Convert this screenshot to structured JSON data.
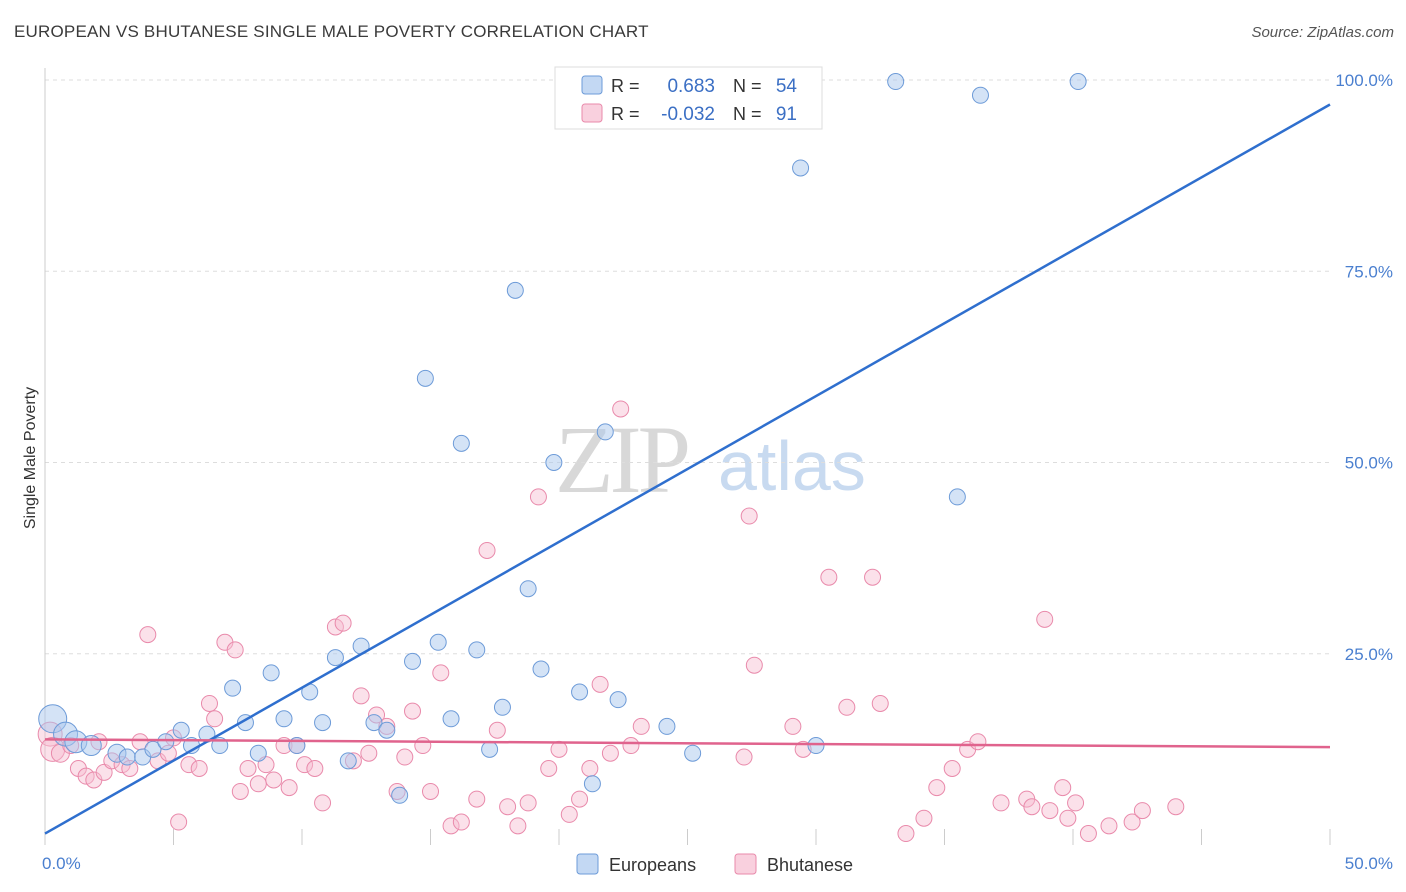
{
  "title": "EUROPEAN VS BHUTANESE SINGLE MALE POVERTY CORRELATION CHART",
  "source": "Source: ZipAtlas.com",
  "watermark": {
    "zip": "ZIP",
    "atlas": "atlas"
  },
  "colors": {
    "europeans_fill": "#a9c8ee",
    "europeans_stroke": "#6d9bd8",
    "europeans_line": "#2f6fce",
    "bhutanese_fill": "#f7bcd0",
    "bhutanese_stroke": "#e98aab",
    "bhutanese_line": "#e0638d",
    "tick_label": "#4a7fcf",
    "grid": "#dddddd"
  },
  "legend": {
    "rows": [
      {
        "r_label": "R =",
        "r_value": "0.683",
        "n_label": "N =",
        "n_value": "54"
      },
      {
        "r_label": "R =",
        "r_value": "-0.032",
        "n_label": "N =",
        "n_value": "91"
      }
    ]
  },
  "bottom_legend": [
    "Europeans",
    "Bhutanese"
  ],
  "chart_data": {
    "type": "scatter",
    "title": "EUROPEAN VS BHUTANESE SINGLE MALE POVERTY CORRELATION CHART",
    "xlabel": "",
    "ylabel": "Single Male Poverty",
    "xlim": [
      0,
      50
    ],
    "ylim": [
      0,
      100
    ],
    "x_tick_labels": [
      "0.0%",
      "50.0%"
    ],
    "y_tick_values": [
      25,
      50,
      75,
      100
    ],
    "y_tick_labels": [
      "25.0%",
      "50.0%",
      "75.0%",
      "100.0%"
    ],
    "grid": true,
    "legend_position": "top-center",
    "series": [
      {
        "name": "Europeans",
        "r": 0.683,
        "n": 54,
        "trend": {
          "x": [
            0,
            50
          ],
          "y": [
            1.5,
            96.8
          ]
        },
        "points": [
          [
            0.3,
            16.5,
            14
          ],
          [
            0.8,
            14.5,
            12
          ],
          [
            1.2,
            13.5,
            11
          ],
          [
            1.8,
            13.0,
            10
          ],
          [
            2.8,
            12.0,
            9
          ],
          [
            3.2,
            11.5,
            8
          ],
          [
            3.8,
            11.5,
            8
          ],
          [
            4.2,
            12.5,
            8
          ],
          [
            4.7,
            13.5,
            8
          ],
          [
            5.3,
            15.0,
            8
          ],
          [
            5.7,
            13.0,
            8
          ],
          [
            6.3,
            14.5,
            8
          ],
          [
            6.8,
            13.0,
            8
          ],
          [
            7.3,
            20.5,
            8
          ],
          [
            7.8,
            16.0,
            8
          ],
          [
            8.3,
            12.0,
            8
          ],
          [
            8.8,
            22.5,
            8
          ],
          [
            9.3,
            16.5,
            8
          ],
          [
            9.8,
            13.0,
            8
          ],
          [
            10.3,
            20.0,
            8
          ],
          [
            10.8,
            16.0,
            8
          ],
          [
            11.3,
            24.5,
            8
          ],
          [
            11.8,
            11.0,
            8
          ],
          [
            12.3,
            26.0,
            8
          ],
          [
            12.8,
            16.0,
            8
          ],
          [
            13.3,
            15.0,
            8
          ],
          [
            13.8,
            6.5,
            8
          ],
          [
            14.3,
            24.0,
            8
          ],
          [
            14.8,
            61.0,
            8
          ],
          [
            15.3,
            26.5,
            8
          ],
          [
            15.8,
            16.5,
            8
          ],
          [
            16.2,
            52.5,
            8
          ],
          [
            16.8,
            25.5,
            8
          ],
          [
            17.3,
            12.5,
            8
          ],
          [
            17.8,
            18.0,
            8
          ],
          [
            18.3,
            72.5,
            8
          ],
          [
            18.8,
            33.5,
            8
          ],
          [
            19.3,
            23.0,
            8
          ],
          [
            19.8,
            50.0,
            8
          ],
          [
            20.8,
            20.0,
            8
          ],
          [
            21.3,
            8.0,
            8
          ],
          [
            21.8,
            54.0,
            8
          ],
          [
            22.3,
            19.0,
            8
          ],
          [
            24.2,
            15.5,
            8
          ],
          [
            25.2,
            12.0,
            8
          ],
          [
            29.4,
            88.5,
            8
          ],
          [
            29.9,
            99.8,
            8
          ],
          [
            30.0,
            13.0,
            8
          ],
          [
            33.1,
            99.8,
            8
          ],
          [
            35.5,
            45.5,
            8
          ],
          [
            36.4,
            98.0,
            8
          ],
          [
            40.2,
            99.8,
            8
          ]
        ]
      },
      {
        "name": "Bhutanese",
        "r": -0.032,
        "n": 91,
        "trend": {
          "x": [
            0,
            50
          ],
          "y": [
            13.8,
            12.8
          ]
        },
        "points": [
          [
            0.2,
            14.5,
            12
          ],
          [
            0.3,
            12.5,
            12
          ],
          [
            0.6,
            12.0,
            9
          ],
          [
            1.0,
            13.0,
            8
          ],
          [
            1.3,
            10.0,
            8
          ],
          [
            1.6,
            9.0,
            8
          ],
          [
            1.9,
            8.5,
            8
          ],
          [
            2.1,
            13.5,
            8
          ],
          [
            2.3,
            9.5,
            8
          ],
          [
            2.6,
            11.0,
            8
          ],
          [
            3.0,
            10.5,
            8
          ],
          [
            3.3,
            10.0,
            8
          ],
          [
            3.7,
            13.5,
            8
          ],
          [
            4.0,
            27.5,
            8
          ],
          [
            4.4,
            11.0,
            8
          ],
          [
            4.8,
            12.0,
            8
          ],
          [
            5.0,
            14.0,
            8
          ],
          [
            5.2,
            3.0,
            8
          ],
          [
            5.6,
            10.5,
            8
          ],
          [
            6.0,
            10.0,
            8
          ],
          [
            6.4,
            18.5,
            8
          ],
          [
            6.6,
            16.5,
            8
          ],
          [
            7.0,
            26.5,
            8
          ],
          [
            7.4,
            25.5,
            8
          ],
          [
            7.6,
            7.0,
            8
          ],
          [
            7.9,
            10.0,
            8
          ],
          [
            8.3,
            8.0,
            8
          ],
          [
            8.6,
            10.5,
            8
          ],
          [
            8.9,
            8.5,
            8
          ],
          [
            9.3,
            13.0,
            8
          ],
          [
            9.5,
            7.5,
            8
          ],
          [
            9.8,
            13.0,
            8
          ],
          [
            10.1,
            10.5,
            8
          ],
          [
            10.5,
            10.0,
            8
          ],
          [
            10.8,
            5.5,
            8
          ],
          [
            11.3,
            28.5,
            8
          ],
          [
            11.6,
            29.0,
            8
          ],
          [
            12.0,
            11.0,
            8
          ],
          [
            12.3,
            19.5,
            8
          ],
          [
            12.6,
            12.0,
            8
          ],
          [
            12.9,
            17.0,
            8
          ],
          [
            13.3,
            15.5,
            8
          ],
          [
            13.7,
            7.0,
            8
          ],
          [
            14.0,
            11.5,
            8
          ],
          [
            14.3,
            17.5,
            8
          ],
          [
            14.7,
            13.0,
            8
          ],
          [
            15.0,
            7.0,
            8
          ],
          [
            15.4,
            22.5,
            8
          ],
          [
            15.8,
            2.5,
            8
          ],
          [
            16.2,
            3.0,
            8
          ],
          [
            16.8,
            6.0,
            8
          ],
          [
            17.2,
            38.5,
            8
          ],
          [
            17.6,
            15.0,
            8
          ],
          [
            18.0,
            5.0,
            8
          ],
          [
            18.4,
            2.5,
            8
          ],
          [
            18.8,
            5.5,
            8
          ],
          [
            19.2,
            45.5,
            8
          ],
          [
            19.6,
            10.0,
            8
          ],
          [
            20.0,
            12.5,
            8
          ],
          [
            20.4,
            4.0,
            8
          ],
          [
            20.8,
            6.0,
            8
          ],
          [
            21.2,
            10.0,
            8
          ],
          [
            21.6,
            21.0,
            8
          ],
          [
            22.0,
            12.0,
            8
          ],
          [
            22.4,
            57.0,
            8
          ],
          [
            22.8,
            13.0,
            8
          ],
          [
            23.2,
            15.5,
            8
          ],
          [
            27.4,
            43.0,
            8
          ],
          [
            27.2,
            11.5,
            8
          ],
          [
            27.6,
            23.5,
            8
          ],
          [
            29.1,
            15.5,
            8
          ],
          [
            29.5,
            12.5,
            8
          ],
          [
            30.5,
            35.0,
            8
          ],
          [
            31.2,
            18.0,
            8
          ],
          [
            32.2,
            35.0,
            8
          ],
          [
            32.5,
            18.5,
            8
          ],
          [
            33.5,
            1.5,
            8
          ],
          [
            34.2,
            3.5,
            8
          ],
          [
            34.7,
            7.5,
            8
          ],
          [
            35.3,
            10.0,
            8
          ],
          [
            35.9,
            12.5,
            8
          ],
          [
            36.3,
            13.5,
            8
          ],
          [
            37.2,
            5.5,
            8
          ],
          [
            38.2,
            6.0,
            8
          ],
          [
            38.4,
            5.0,
            8
          ],
          [
            38.9,
            29.5,
            8
          ],
          [
            39.1,
            4.5,
            8
          ],
          [
            39.6,
            7.5,
            8
          ],
          [
            39.8,
            3.5,
            8
          ],
          [
            40.1,
            5.5,
            8
          ],
          [
            40.6,
            1.5,
            8
          ],
          [
            41.4,
            2.5,
            8
          ],
          [
            42.3,
            3.0,
            8
          ],
          [
            42.7,
            4.5,
            8
          ],
          [
            44.0,
            5.0,
            8
          ]
        ]
      }
    ]
  }
}
